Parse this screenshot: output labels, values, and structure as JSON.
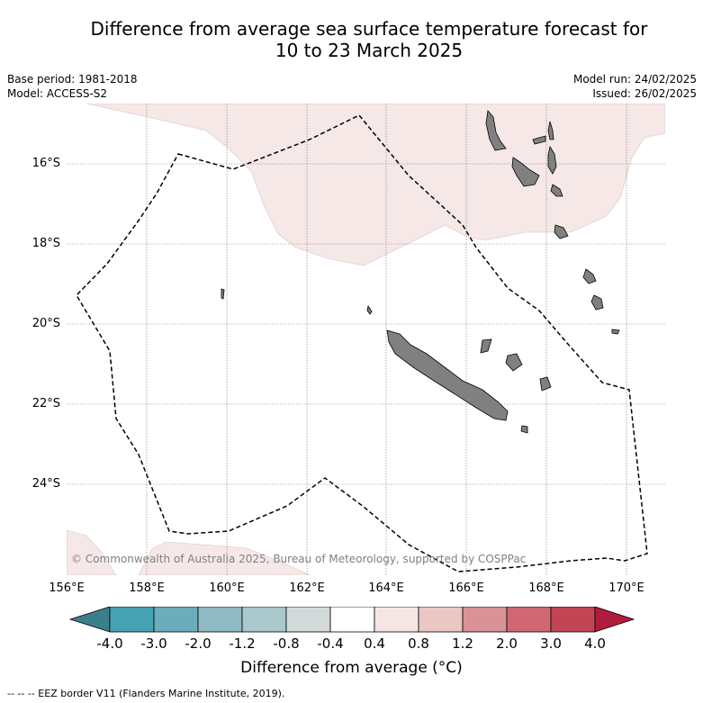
{
  "title_line1": "Difference from average sea surface temperature forecast for",
  "title_line2": "10 to 23 March 2025",
  "base_period": "Base period: 1981-2018",
  "model": "Model: ACCESS-S2",
  "model_run": "Model run: 24/02/2025",
  "issued": "Issued: 26/02/2025",
  "lat_labels": [
    "16°S",
    "18°S",
    "20°S",
    "22°S",
    "24°S"
  ],
  "lon_labels": [
    "156°E",
    "158°E",
    "160°E",
    "162°E",
    "164°E",
    "166°E",
    "168°E",
    "170°E"
  ],
  "colorbar": {
    "title": "Difference from average (°C)",
    "tick_labels": [
      "-4.0",
      "-3.0",
      "-2.0",
      "-1.2",
      "-0.8",
      "-0.4",
      "0.4",
      "0.8",
      "1.2",
      "2.0",
      "3.0",
      "4.0"
    ],
    "colors": [
      "#3b7f8c",
      "#45a3b3",
      "#6badbb",
      "#8fb9c3",
      "#a8c8cb",
      "#d4d9da",
      "#ffffff",
      "#f5e6e5",
      "#eac7c2",
      "#d99297",
      "#cf6873",
      "#c24556",
      "#b01c3c"
    ]
  },
  "credit": "© Commonwealth of Australia 2025, Bureau of Meteorology, supported by COSPPac",
  "eez_note": "-- -- -- EEZ border V11 (Flanders Marine Institute, 2019).",
  "colors": {
    "warm_anomaly_fill": "#f5e8e7",
    "land": "#808080",
    "grid": "#7a7a7a"
  }
}
